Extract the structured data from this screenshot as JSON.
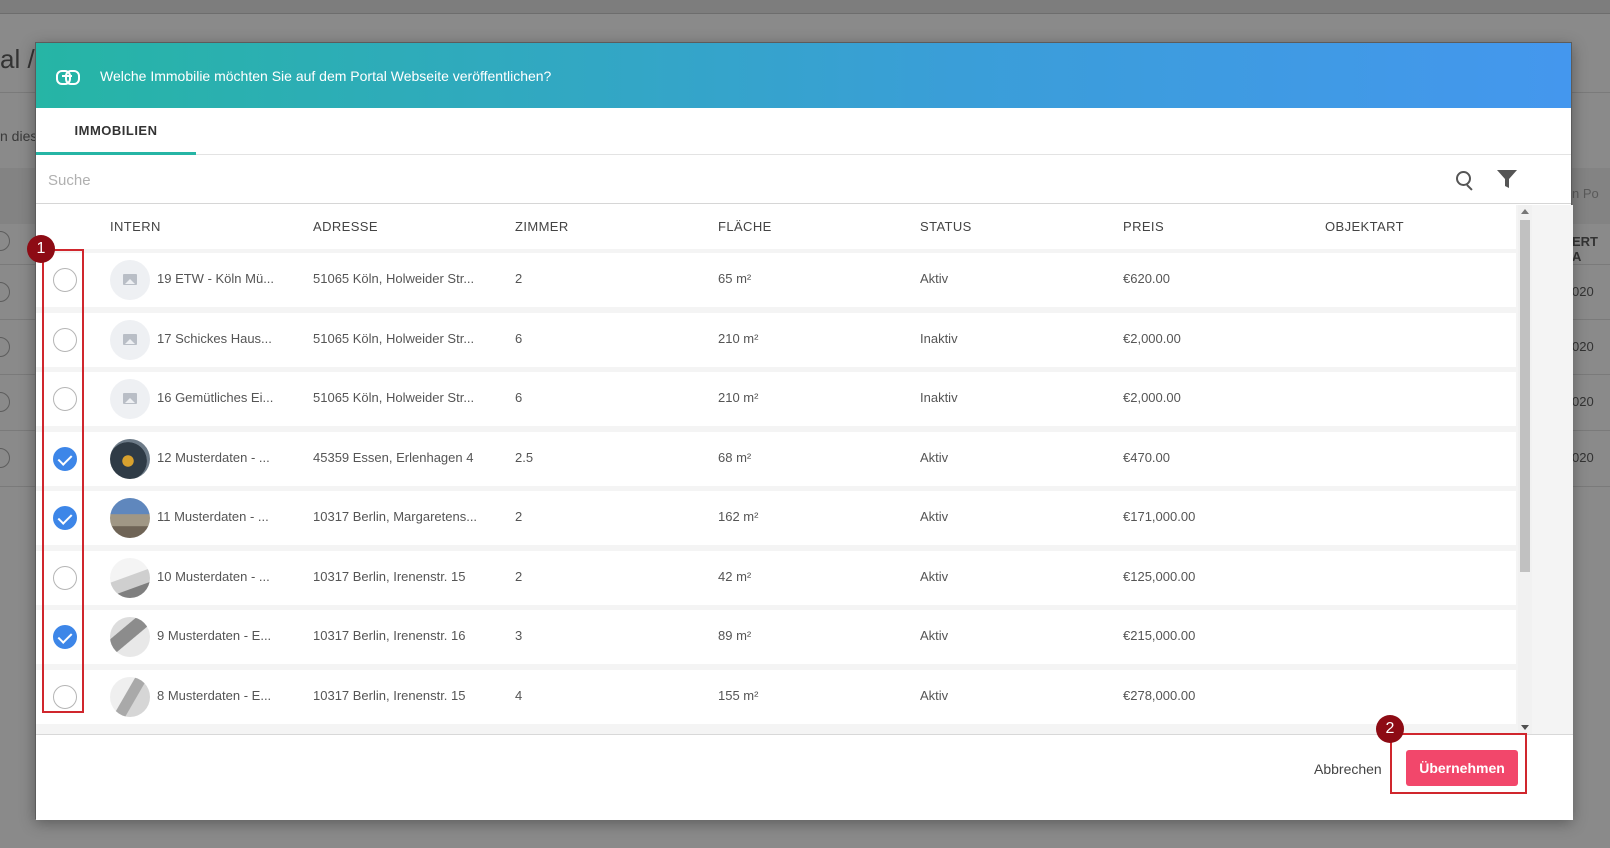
{
  "background": {
    "title": "al /",
    "subtitle": "n dies",
    "right_header": "ERT A",
    "right_partial_label": "n Po",
    "years": [
      "020",
      "020",
      "020",
      "020"
    ]
  },
  "dialog": {
    "title": "Welche Immobilie möchten Sie auf dem Portal Webseite veröffentlichen?",
    "header_icon": "link-icon",
    "colors": {
      "accent": "#26b5a5",
      "checked": "#3d86e8",
      "primary_button": "#f2476b"
    },
    "tabs": [
      {
        "label": "IMMOBILIEN",
        "active": true
      }
    ],
    "search": {
      "placeholder": "Suche",
      "value": ""
    },
    "columns": [
      "INTERN",
      "ADRESSE",
      "ZIMMER",
      "FLÄCHE",
      "STATUS",
      "PREIS",
      "OBJEKTART"
    ],
    "rows": [
      {
        "checked": false,
        "thumb": "placeholder",
        "intern": "19  ETW - Köln Mü...",
        "adresse": "51065 Köln, Holweider Str...",
        "zimmer": "2",
        "flaeche": "65 m²",
        "status": "Aktiv",
        "preis": "€620.00",
        "objektart": ""
      },
      {
        "checked": false,
        "thumb": "placeholder",
        "intern": "17  Schickes Haus...",
        "adresse": "51065 Köln, Holweider Str...",
        "zimmer": "6",
        "flaeche": "210 m²",
        "status": "Inaktiv",
        "preis": "€2,000.00",
        "objektart": ""
      },
      {
        "checked": false,
        "thumb": "placeholder",
        "intern": "16  Gemütliches Ei...",
        "adresse": "51065 Köln, Holweider Str...",
        "zimmer": "6",
        "flaeche": "210 m²",
        "status": "Inaktiv",
        "preis": "€2,000.00",
        "objektart": ""
      },
      {
        "checked": true,
        "thumb": "photo-a",
        "intern": "12  Musterdaten - ...",
        "adresse": "45359 Essen, Erlenhagen 4",
        "zimmer": "2.5",
        "flaeche": "68 m²",
        "status": "Aktiv",
        "preis": "€470.00",
        "objektart": ""
      },
      {
        "checked": true,
        "thumb": "photo-b",
        "intern": "11  Musterdaten - ...",
        "adresse": "10317 Berlin, Margaretens...",
        "zimmer": "2",
        "flaeche": "162 m²",
        "status": "Aktiv",
        "preis": "€171,000.00",
        "objektart": ""
      },
      {
        "checked": false,
        "thumb": "photo-c",
        "intern": "10  Musterdaten - ...",
        "adresse": "10317 Berlin, Irenenstr. 15",
        "zimmer": "2",
        "flaeche": "42 m²",
        "status": "Aktiv",
        "preis": "€125,000.00",
        "objektart": ""
      },
      {
        "checked": true,
        "thumb": "photo-d",
        "intern": "9  Musterdaten - E...",
        "adresse": "10317 Berlin, Irenenstr. 16",
        "zimmer": "3",
        "flaeche": "89 m²",
        "status": "Aktiv",
        "preis": "€215,000.00",
        "objektart": ""
      },
      {
        "checked": false,
        "thumb": "photo-e",
        "intern": "8  Musterdaten - E...",
        "adresse": "10317 Berlin, Irenenstr. 15",
        "zimmer": "4",
        "flaeche": "155 m²",
        "status": "Aktiv",
        "preis": "€278,000.00",
        "objektart": ""
      }
    ],
    "footer": {
      "cancel_label": "Abbrechen",
      "apply_label": "Übernehmen"
    }
  },
  "annotations": {
    "badge_1": "1",
    "badge_2": "2",
    "color": "#d0262d"
  }
}
